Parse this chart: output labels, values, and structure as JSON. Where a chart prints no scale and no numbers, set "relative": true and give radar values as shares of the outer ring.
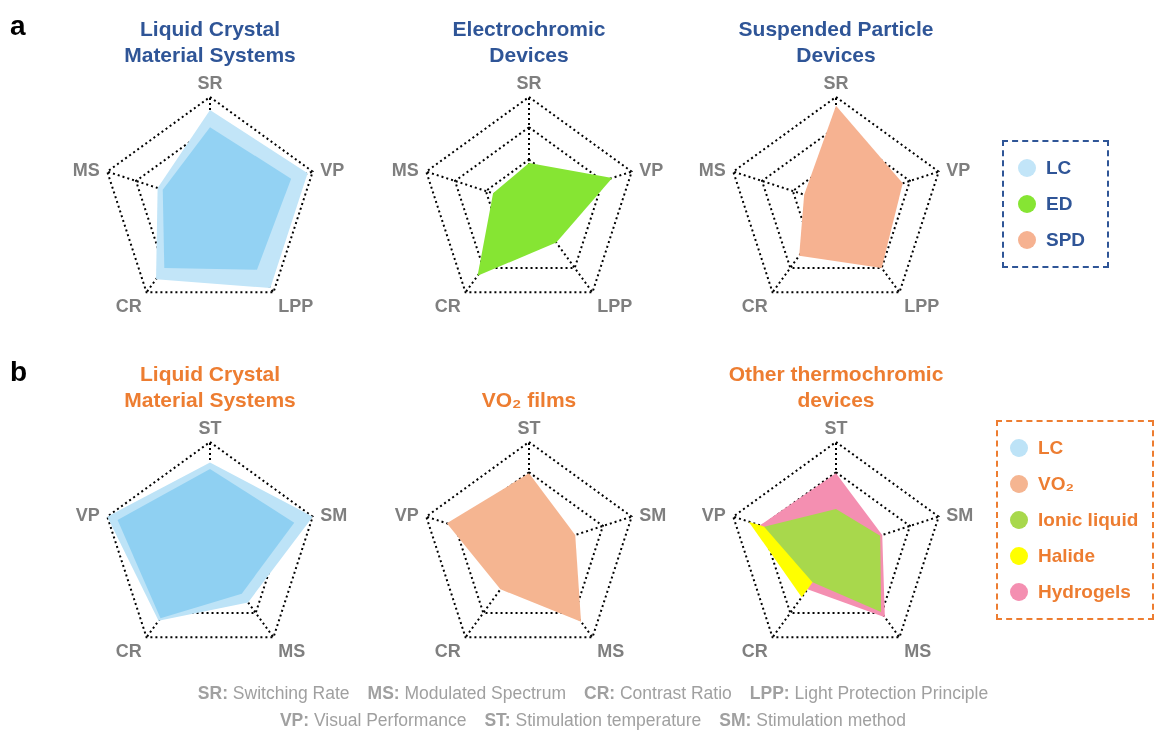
{
  "chart_data": [
    {
      "type": "radar",
      "title": "Liquid Crystal Material Systems",
      "relative": true,
      "categories": [
        "SR",
        "VP",
        "LPP",
        "CR",
        "MS"
      ],
      "annotations": [
        "a",
        "SR: Switching Rate",
        "MS: Modulated Spectrum",
        "CR: Contrast Ratio",
        "LPP: Light Protection Principle",
        "VP: Visual Performance",
        "ST: Stimulation temperature",
        "SM: Stimulation method"
      ],
      "series": [
        {
          "name": "LC",
          "color": "#c2e5f8",
          "values": [
            0.88,
            0.95,
            0.95,
            0.85,
            0.51
          ]
        },
        {
          "color": "#93d2f3",
          "values": [
            0.72,
            0.79,
            0.74,
            0.72,
            0.46
          ]
        }
      ]
    },
    {
      "type": "radar",
      "title": "Electrochromic Devices",
      "relative": true,
      "categories": [
        "SR",
        "VP",
        "LPP",
        "CR",
        "MS"
      ],
      "series": [
        {
          "name": "ED",
          "color": "#86e533",
          "values": [
            0.39,
            0.81,
            0.43,
            0.81,
            0.35
          ]
        }
      ]
    },
    {
      "type": "radar",
      "title": "Suspended Particle Devices",
      "relative": true,
      "categories": [
        "SR",
        "VP",
        "LPP",
        "CR",
        "MS"
      ],
      "legend": "right",
      "series": [
        {
          "name": "SPD",
          "color": "#f6b291",
          "values": [
            0.92,
            0.65,
            0.72,
            0.58,
            0.31
          ]
        }
      ]
    },
    {
      "type": "radar",
      "title": "Liquid Crystal Material Systems",
      "relative": true,
      "categories": [
        "ST",
        "SM",
        "MS",
        "CR",
        "VP"
      ],
      "annotations": [
        "b"
      ],
      "series": [
        {
          "name": "LC",
          "color": "#bde3f7",
          "values": [
            0.81,
            1,
            0.6,
            0.81,
            1
          ]
        },
        {
          "color": "#8fd0f2",
          "values": [
            0.75,
            0.82,
            0.5,
            0.78,
            0.9
          ]
        }
      ]
    },
    {
      "type": "radar",
      "title": "VO₂ films",
      "relative": true,
      "categories": [
        "ST",
        "SM",
        "MS",
        "CR",
        "VP"
      ],
      "series": [
        {
          "name": "VO₂",
          "color": "#f5b591",
          "values": [
            0.71,
            0.45,
            0.82,
            0.45,
            0.8
          ]
        }
      ]
    },
    {
      "type": "radar",
      "title": "Other thermochromic devices",
      "relative": true,
      "categories": [
        "ST",
        "SM",
        "MS",
        "CR",
        "VP"
      ],
      "legend": "right",
      "series": [
        {
          "name": "Hydrogels",
          "color": "#f48fb1",
          "values": [
            0.71,
            0.45,
            0.77,
            0.45,
            0.74
          ]
        },
        {
          "name": "Halide",
          "color": "#ffff00",
          "values": [
            null,
            null,
            null,
            0.54,
            0.85
          ]
        },
        {
          "name": "Ionic liquid",
          "color": "#a8d84c",
          "values": [
            0.38,
            0.43,
            0.71,
            0.37,
            0.7
          ]
        }
      ]
    }
  ]
}
